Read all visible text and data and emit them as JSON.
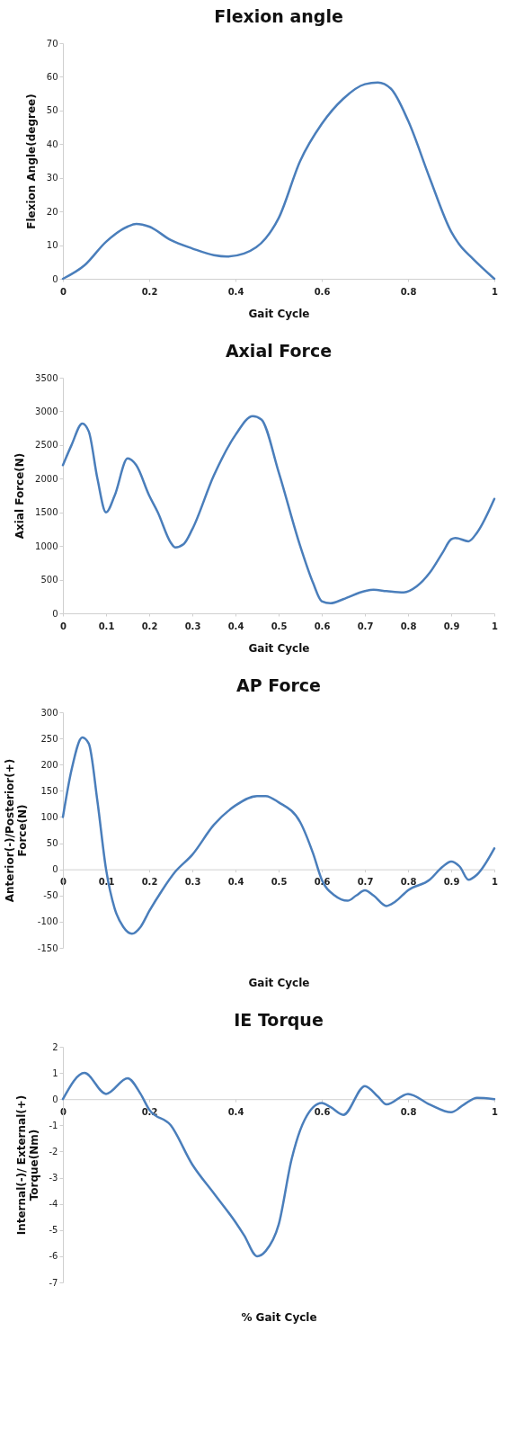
{
  "chart_data": [
    {
      "type": "line",
      "title": "Flexion angle",
      "xlabel": "Gait Cycle",
      "ylabel": "Flexion Angle(degree)",
      "xlim": [
        0,
        1
      ],
      "ylim": [
        0,
        70
      ],
      "xticks": [
        0,
        0.2,
        0.4,
        0.6,
        0.8,
        1
      ],
      "yticks": [
        0,
        10,
        20,
        30,
        40,
        50,
        60,
        70
      ],
      "line_style": "solid",
      "x": [
        0,
        0.05,
        0.1,
        0.15,
        0.17,
        0.2,
        0.25,
        0.3,
        0.35,
        0.38,
        0.42,
        0.47,
        0.5,
        0.55,
        0.6,
        0.65,
        0.7,
        0.73,
        0.76,
        0.8,
        0.85,
        0.9,
        0.92,
        0.95,
        1
      ],
      "series": [
        {
          "color": "#4a7ebb",
          "values": [
            0,
            4,
            11,
            15.5,
            16.3,
            15.5,
            11.5,
            9,
            7,
            6.6,
            7.5,
            12,
            18,
            35,
            46,
            53.5,
            57.8,
            58.3,
            56.5,
            47,
            30,
            14,
            10,
            6,
            0
          ]
        }
      ]
    },
    {
      "type": "line",
      "title": "Axial Force",
      "xlabel": "Gait Cycle",
      "ylabel": "Axial Force(N)",
      "xlim": [
        0,
        1
      ],
      "ylim": [
        0,
        3500
      ],
      "xticks": [
        0,
        0.1,
        0.2,
        0.3,
        0.4,
        0.5,
        0.6,
        0.7,
        0.8,
        0.9,
        1
      ],
      "yticks": [
        0,
        500,
        1000,
        1500,
        2000,
        2500,
        3000,
        3500
      ],
      "line_style": "solid",
      "x": [
        0,
        0.02,
        0.045,
        0.06,
        0.08,
        0.1,
        0.12,
        0.15,
        0.17,
        0.2,
        0.22,
        0.25,
        0.26,
        0.28,
        0.3,
        0.35,
        0.4,
        0.44,
        0.46,
        0.5,
        0.55,
        0.58,
        0.6,
        0.62,
        0.65,
        0.7,
        0.72,
        0.75,
        0.79,
        0.82,
        0.85,
        0.88,
        0.9,
        0.91,
        0.94,
        0.96,
        1
      ],
      "series": [
        {
          "color": "#4a7ebb",
          "values": [
            2200,
            2500,
            2820,
            2700,
            2000,
            1500,
            1750,
            2300,
            2200,
            1750,
            1500,
            1050,
            980,
            1030,
            1250,
            2050,
            2650,
            2930,
            2880,
            2100,
            1000,
            450,
            180,
            150,
            210,
            330,
            350,
            330,
            310,
            400,
            600,
            900,
            1100,
            1120,
            1070,
            1200,
            1700
          ]
        }
      ]
    },
    {
      "type": "line",
      "title": "AP Force",
      "xlabel": "Gait Cycle",
      "ylabel": "Anterior(-)/Posterior(+)\nForce(N)",
      "xlim": [
        0,
        1
      ],
      "ylim": [
        -150,
        300
      ],
      "xticks": [
        0,
        0.1,
        0.2,
        0.3,
        0.4,
        0.5,
        0.6,
        0.7,
        0.8,
        0.9,
        1
      ],
      "yticks": [
        -150,
        -100,
        -50,
        0,
        50,
        100,
        150,
        200,
        250,
        300
      ],
      "line_style": "solid",
      "x": [
        0,
        0.02,
        0.045,
        0.06,
        0.08,
        0.1,
        0.12,
        0.14,
        0.16,
        0.18,
        0.2,
        0.23,
        0.26,
        0.3,
        0.35,
        0.4,
        0.45,
        0.47,
        0.5,
        0.55,
        0.58,
        0.6,
        0.63,
        0.66,
        0.68,
        0.7,
        0.72,
        0.75,
        0.77,
        0.8,
        0.85,
        0.88,
        0.9,
        0.92,
        0.94,
        0.96,
        1
      ],
      "series": [
        {
          "color": "#4a7ebb",
          "values": [
            100,
            190,
            252,
            240,
            130,
            0,
            -75,
            -110,
            -123,
            -110,
            -80,
            -40,
            -5,
            28,
            85,
            122,
            140,
            140,
            128,
            90,
            30,
            -20,
            -50,
            -60,
            -50,
            -40,
            -50,
            -70,
            -62,
            -40,
            -20,
            5,
            15,
            5,
            -20,
            -10,
            40
          ]
        }
      ]
    },
    {
      "type": "line",
      "title": "IE Torque",
      "xlabel": "% Gait Cycle",
      "ylabel": "Internal(-)/ External(+)\nTorque(Nm)",
      "xlim": [
        0,
        1
      ],
      "ylim": [
        -7,
        2
      ],
      "xticks": [
        0,
        0.2,
        0.4,
        0.6,
        0.8,
        1
      ],
      "yticks": [
        -7,
        -6,
        -5,
        -4,
        -3,
        -2,
        -1,
        0,
        1,
        2
      ],
      "line_style": "solid",
      "x": [
        0,
        0.05,
        0.1,
        0.15,
        0.18,
        0.2,
        0.25,
        0.3,
        0.35,
        0.4,
        0.42,
        0.45,
        0.47,
        0.5,
        0.53,
        0.56,
        0.6,
        0.62,
        0.65,
        0.7,
        0.73,
        0.75,
        0.8,
        0.85,
        0.9,
        0.93,
        0.96,
        1
      ],
      "series": [
        {
          "color": "#4a7ebb",
          "values": [
            0,
            1.0,
            0.2,
            0.8,
            0.2,
            -0.4,
            -1.0,
            -2.5,
            -3.6,
            -4.7,
            -5.2,
            -6.0,
            -5.8,
            -4.8,
            -2.3,
            -0.8,
            -0.15,
            -0.3,
            -0.6,
            0.5,
            0.1,
            -0.2,
            0.2,
            -0.2,
            -0.5,
            -0.2,
            0.05,
            0
          ]
        }
      ]
    }
  ]
}
